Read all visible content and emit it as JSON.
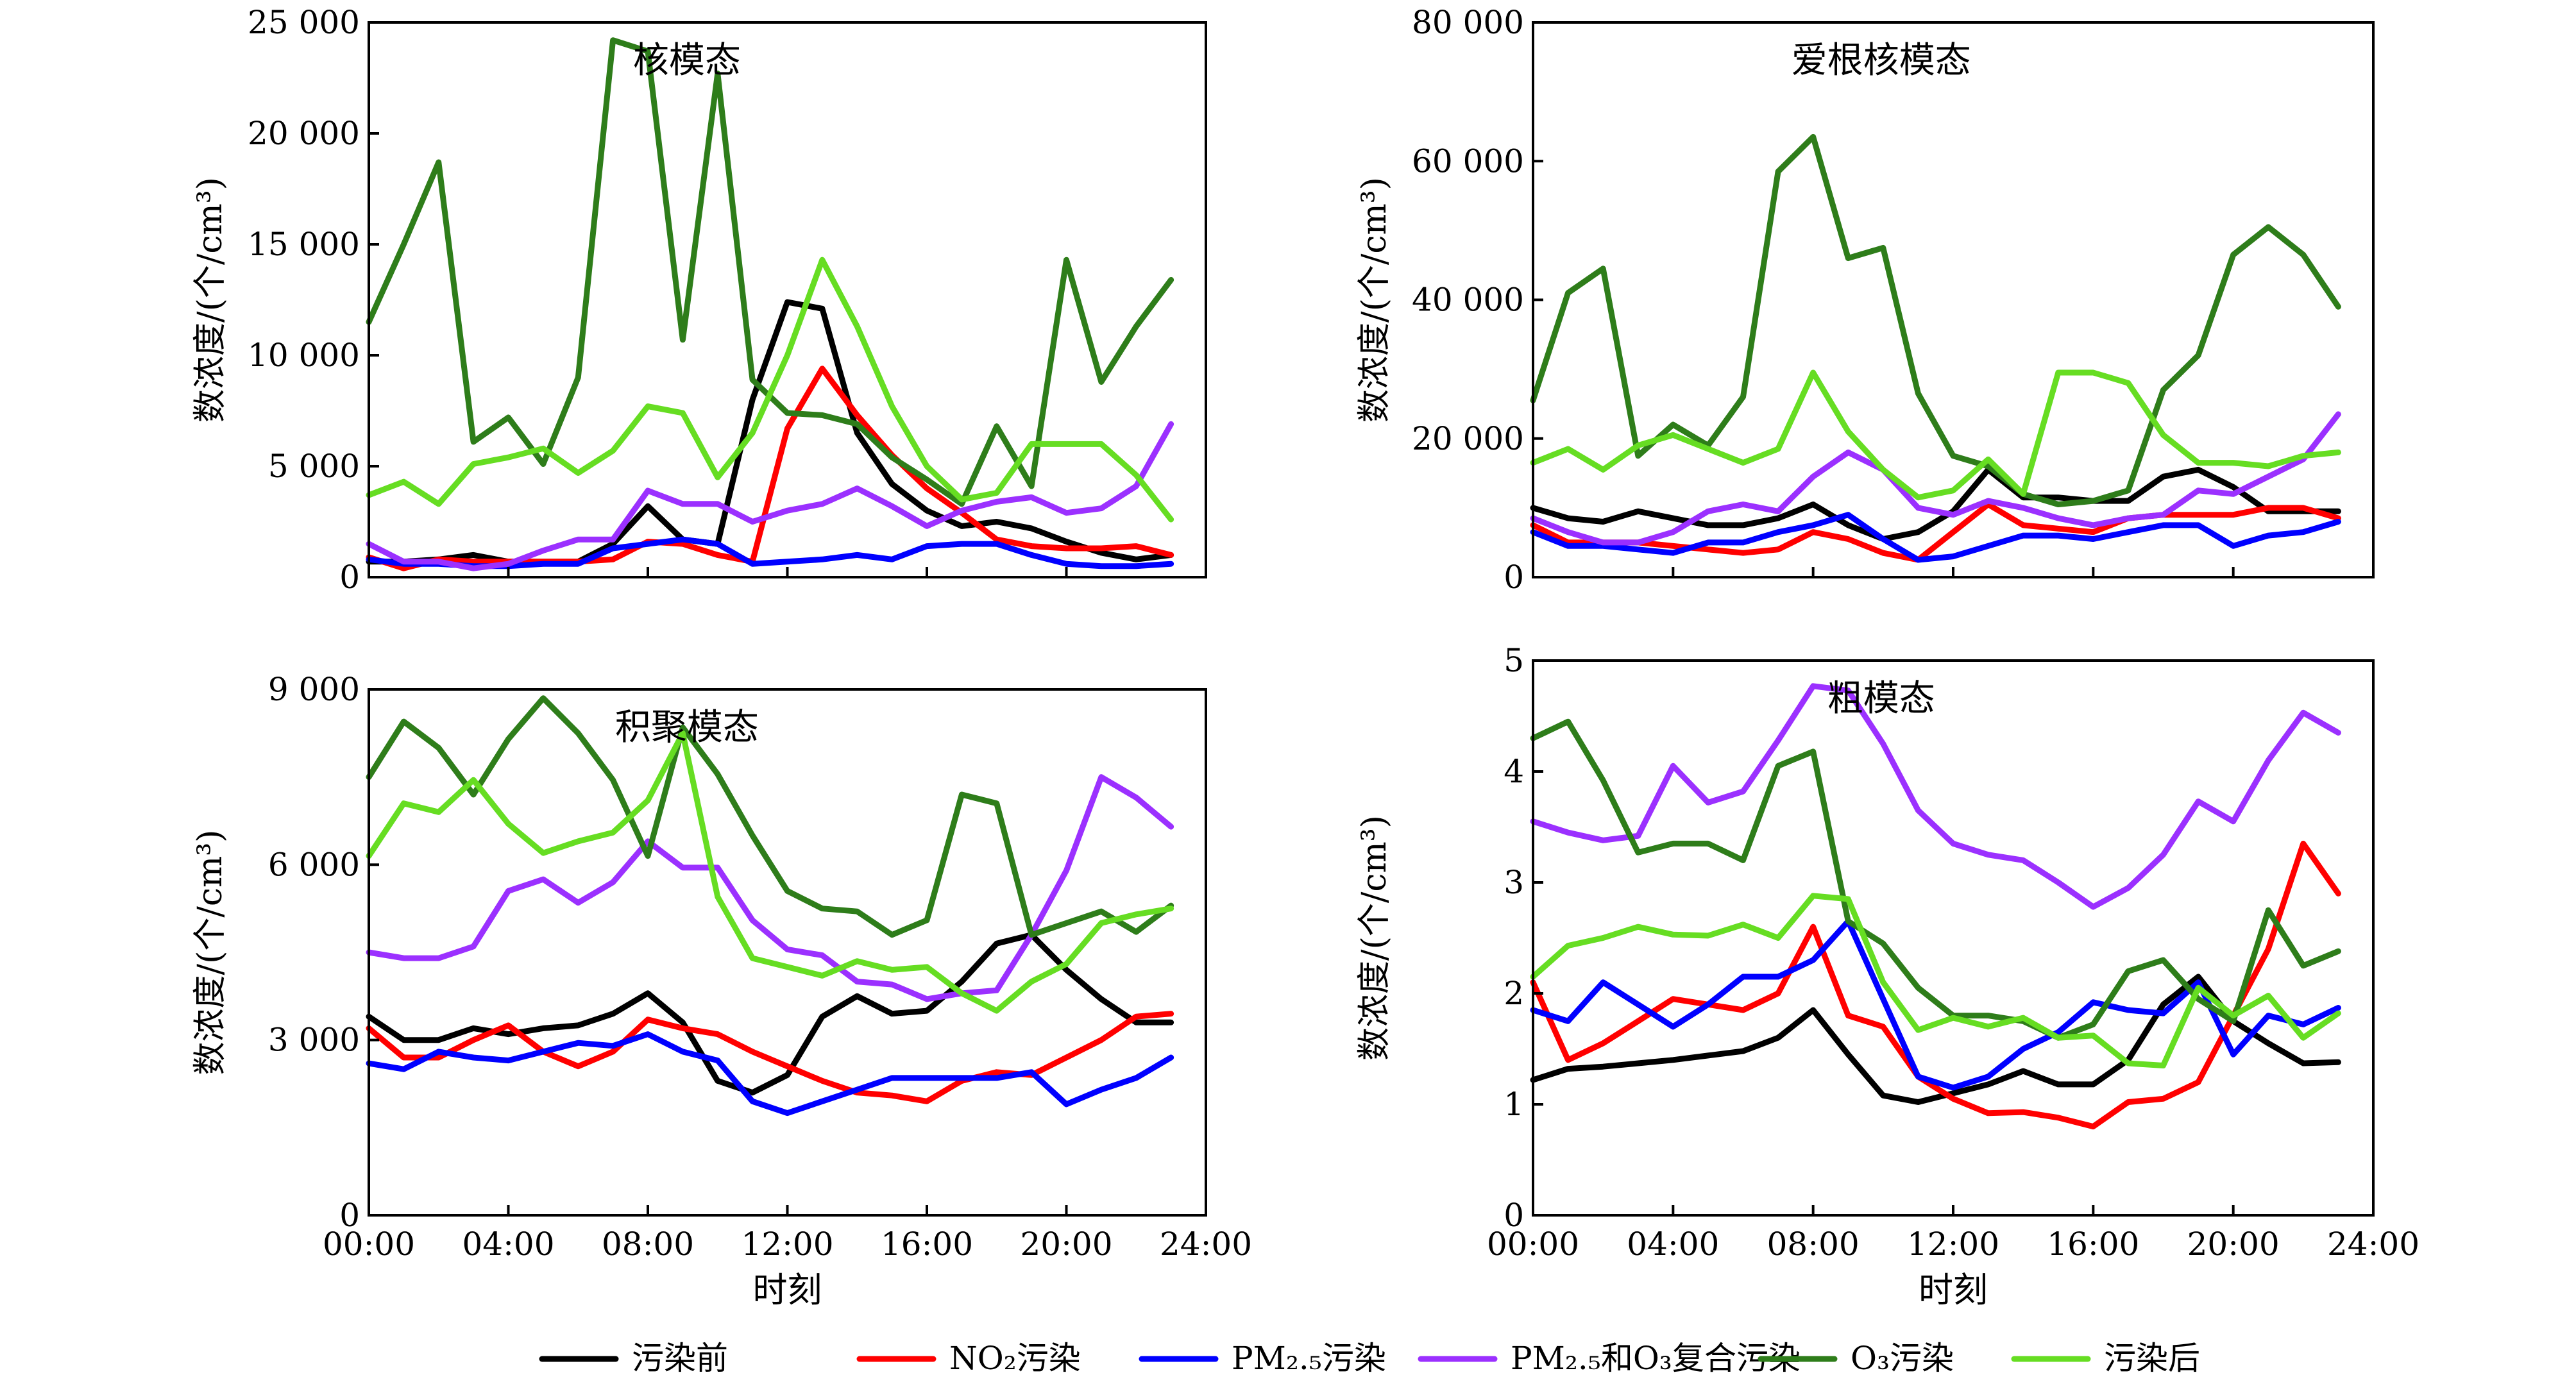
{
  "colors": {
    "污染前": "#000000",
    "NO2污染": "#ff0000",
    "PM2.5污染": "#0000ff",
    "PM2.5和O3复合污染": "#9b30ff",
    "O3污染": "#2e7d1a",
    "污染后": "#66dd22"
  },
  "legend": [
    {
      "key": "污染前",
      "label": "污染前"
    },
    {
      "key": "NO2污染",
      "label": "NO₂污染"
    },
    {
      "key": "PM2.5污染",
      "label": "PM₂.₅污染"
    },
    {
      "key": "PM2.5和O3复合污染",
      "label": "PM₂.₅和O₃复合污染"
    },
    {
      "key": "O3污染",
      "label": "O₃污染"
    },
    {
      "key": "污染后",
      "label": "污染后"
    }
  ],
  "chart_data": [
    {
      "type": "line",
      "title": "核模态",
      "ylabel": "数浓度/(个/cm³)",
      "xlabel": "",
      "x": [
        0,
        1,
        2,
        3,
        4,
        5,
        6,
        7,
        8,
        9,
        10,
        11,
        12,
        13,
        14,
        15,
        16,
        17,
        18,
        19,
        20,
        21,
        22,
        23
      ],
      "xticks": [
        "00:00",
        "04:00",
        "08:00",
        "12:00",
        "16:00",
        "20:00",
        "24:00"
      ],
      "xlim": [
        0,
        24
      ],
      "ylim": [
        0,
        25000
      ],
      "yticks": [
        0,
        5000,
        10000,
        15000,
        20000,
        25000
      ],
      "ytick_labels": [
        "0",
        "5 000",
        "10 000",
        "15 000",
        "20 000",
        "25 000"
      ],
      "series": [
        {
          "key": "污染前",
          "values": [
            700,
            700,
            800,
            1000,
            700,
            700,
            700,
            1500,
            3200,
            1700,
            1500,
            8000,
            12400,
            12100,
            6500,
            4200,
            3000,
            2300,
            2500,
            2200,
            1600,
            1100,
            800,
            1000
          ]
        },
        {
          "key": "NO2污染",
          "values": [
            900,
            400,
            800,
            700,
            700,
            700,
            700,
            800,
            1600,
            1500,
            1000,
            700,
            6700,
            9400,
            7300,
            5500,
            4000,
            2900,
            1700,
            1400,
            1300,
            1300,
            1400,
            1000
          ]
        },
        {
          "key": "PM2.5污染",
          "values": [
            800,
            600,
            600,
            500,
            500,
            600,
            600,
            1300,
            1500,
            1700,
            1500,
            600,
            700,
            800,
            1000,
            800,
            1400,
            1500,
            1500,
            1000,
            600,
            500,
            500,
            600
          ]
        },
        {
          "key": "PM2.5和O3复合污染",
          "values": [
            1500,
            700,
            700,
            400,
            600,
            1200,
            1700,
            1700,
            3900,
            3300,
            3300,
            2500,
            3000,
            3300,
            4000,
            3200,
            2300,
            3000,
            3400,
            3600,
            2900,
            3100,
            4100,
            6900
          ]
        },
        {
          "key": "O3污染",
          "values": [
            11500,
            15000,
            18700,
            6100,
            7200,
            5100,
            9000,
            24200,
            23700,
            10700,
            22700,
            8900,
            7400,
            7300,
            6900,
            5400,
            4400,
            3300,
            6800,
            4100,
            14300,
            8800,
            11300,
            13400
          ]
        },
        {
          "key": "污染后",
          "values": [
            3700,
            4300,
            3300,
            5100,
            5400,
            5800,
            4700,
            5700,
            7700,
            7400,
            4500,
            6500,
            10000,
            14300,
            11300,
            7700,
            5000,
            3500,
            3800,
            6000,
            6000,
            6000,
            4600,
            2600
          ]
        }
      ]
    },
    {
      "type": "line",
      "title": "爱根核模态",
      "ylabel": "数浓度/(个/cm³)",
      "xlabel": "",
      "x": [
        0,
        1,
        2,
        3,
        4,
        5,
        6,
        7,
        8,
        9,
        10,
        11,
        12,
        13,
        14,
        15,
        16,
        17,
        18,
        19,
        20,
        21,
        22,
        23
      ],
      "xticks": [
        "00:00",
        "04:00",
        "08:00",
        "12:00",
        "16:00",
        "20:00",
        "24:00"
      ],
      "xlim": [
        0,
        24
      ],
      "ylim": [
        0,
        80000
      ],
      "yticks": [
        0,
        20000,
        40000,
        60000,
        80000
      ],
      "ytick_labels": [
        "0",
        "20 000",
        "40 000",
        "60 000",
        "80 000"
      ],
      "series": [
        {
          "key": "污染前",
          "values": [
            10000,
            8500,
            8000,
            9500,
            8500,
            7500,
            7500,
            8500,
            10500,
            7500,
            5500,
            6500,
            9500,
            15500,
            11500,
            11500,
            11000,
            11000,
            14500,
            15500,
            13000,
            9500,
            9500,
            9500
          ]
        },
        {
          "key": "NO2污染",
          "values": [
            7500,
            5000,
            5000,
            5000,
            4500,
            4000,
            3500,
            4000,
            6500,
            5500,
            3500,
            2500,
            6500,
            10500,
            7500,
            7000,
            6500,
            8500,
            9000,
            9000,
            9000,
            10000,
            10000,
            8500
          ]
        },
        {
          "key": "PM2.5污染",
          "values": [
            6500,
            4500,
            4500,
            4000,
            3500,
            5000,
            5000,
            6500,
            7500,
            9000,
            5500,
            2500,
            3000,
            4500,
            6000,
            6000,
            5500,
            6500,
            7500,
            7500,
            4500,
            6000,
            6500,
            8000
          ]
        },
        {
          "key": "PM2.5和O3复合污染",
          "values": [
            8500,
            6500,
            5000,
            5000,
            6500,
            9500,
            10500,
            9500,
            14500,
            18000,
            15500,
            10000,
            9000,
            11000,
            10000,
            8500,
            7500,
            8500,
            9000,
            12500,
            12000,
            14500,
            17000,
            23500
          ]
        },
        {
          "key": "O3污染",
          "values": [
            25500,
            41000,
            44500,
            17500,
            22000,
            19000,
            26000,
            58500,
            63500,
            46000,
            47500,
            26500,
            17500,
            16000,
            12000,
            10500,
            11000,
            12500,
            27000,
            32000,
            46500,
            50500,
            46500,
            39000
          ]
        },
        {
          "key": "污染后",
          "values": [
            16500,
            18500,
            15500,
            19000,
            20500,
            18500,
            16500,
            18500,
            29500,
            21000,
            15500,
            11500,
            12500,
            17000,
            12000,
            29500,
            29500,
            28000,
            20500,
            16500,
            16500,
            16000,
            17500,
            18000
          ]
        }
      ]
    },
    {
      "type": "line",
      "title": "积聚模态",
      "ylabel": "数浓度/(个/cm³)",
      "xlabel": "时刻",
      "x": [
        0,
        1,
        2,
        3,
        4,
        5,
        6,
        7,
        8,
        9,
        10,
        11,
        12,
        13,
        14,
        15,
        16,
        17,
        18,
        19,
        20,
        21,
        22,
        23
      ],
      "xticks": [
        "00:00",
        "04:00",
        "08:00",
        "12:00",
        "16:00",
        "20:00",
        "24:00"
      ],
      "xlim": [
        0,
        24
      ],
      "ylim": [
        0,
        9000
      ],
      "yticks": [
        0,
        3000,
        6000,
        9000
      ],
      "ytick_labels": [
        "0",
        "3 000",
        "6 000",
        "9 000"
      ],
      "series": [
        {
          "key": "污染前",
          "values": [
            3400,
            3000,
            3000,
            3200,
            3100,
            3200,
            3250,
            3450,
            3800,
            3300,
            2300,
            2100,
            2400,
            3400,
            3750,
            3450,
            3500,
            4000,
            4650,
            4800,
            4200,
            3700,
            3300,
            3300
          ]
        },
        {
          "key": "NO2污染",
          "values": [
            3200,
            2700,
            2700,
            3000,
            3250,
            2800,
            2550,
            2800,
            3350,
            3200,
            3100,
            2800,
            2550,
            2300,
            2100,
            2050,
            1950,
            2300,
            2450,
            2400,
            2700,
            3000,
            3400,
            3450
          ]
        },
        {
          "key": "PM2.5污染",
          "values": [
            2600,
            2500,
            2800,
            2700,
            2650,
            2800,
            2950,
            2900,
            3100,
            2800,
            2650,
            1950,
            1750,
            1950,
            2150,
            2350,
            2350,
            2350,
            2350,
            2450,
            1900,
            2150,
            2350,
            2700
          ]
        },
        {
          "key": "PM2.5和O3复合污染",
          "values": [
            4500,
            4400,
            4400,
            4600,
            5550,
            5750,
            5350,
            5700,
            6400,
            5950,
            5950,
            5050,
            4550,
            4450,
            4000,
            3950,
            3700,
            3800,
            3850,
            4800,
            5900,
            7500,
            7150,
            6650
          ]
        },
        {
          "key": "O3污染",
          "values": [
            7500,
            8450,
            8000,
            7200,
            8150,
            8850,
            8250,
            7450,
            6150,
            8350,
            7550,
            6500,
            5550,
            5250,
            5200,
            4800,
            5050,
            7200,
            7050,
            4800,
            5000,
            5200,
            4850,
            5300
          ]
        },
        {
          "key": "污染后",
          "values": [
            6150,
            7050,
            6900,
            7450,
            6700,
            6200,
            6400,
            6550,
            7100,
            8250,
            5450,
            4400,
            4250,
            4100,
            4350,
            4200,
            4250,
            3800,
            3500,
            4000,
            4300,
            5000,
            5150,
            5250
          ]
        }
      ]
    },
    {
      "type": "line",
      "title": "粗模态",
      "ylabel": "数浓度/(个/cm³)",
      "xlabel": "时刻",
      "x": [
        0,
        1,
        2,
        3,
        4,
        5,
        6,
        7,
        8,
        9,
        10,
        11,
        12,
        13,
        14,
        15,
        16,
        17,
        18,
        19,
        20,
        21,
        22,
        23
      ],
      "xticks": [
        "00:00",
        "04:00",
        "08:00",
        "12:00",
        "16:00",
        "20:00",
        "24:00"
      ],
      "xlim": [
        0,
        24
      ],
      "ylim": [
        0,
        5
      ],
      "yticks": [
        0,
        1,
        2,
        3,
        4,
        5
      ],
      "ytick_labels": [
        "0",
        "1",
        "2",
        "3",
        "4",
        "5"
      ],
      "series": [
        {
          "key": "污染前",
          "values": [
            1.22,
            1.32,
            1.34,
            1.37,
            1.4,
            1.44,
            1.48,
            1.6,
            1.85,
            1.45,
            1.08,
            1.02,
            1.1,
            1.18,
            1.3,
            1.18,
            1.18,
            1.4,
            1.9,
            2.15,
            1.75,
            1.55,
            1.37,
            1.38
          ]
        },
        {
          "key": "NO2污染",
          "values": [
            2.1,
            1.4,
            1.55,
            1.75,
            1.95,
            1.9,
            1.85,
            2.0,
            2.6,
            1.8,
            1.7,
            1.25,
            1.05,
            0.92,
            0.93,
            0.88,
            0.8,
            1.02,
            1.05,
            1.2,
            1.8,
            2.4,
            3.35,
            2.9
          ]
        },
        {
          "key": "PM2.5污染",
          "values": [
            1.85,
            1.75,
            2.1,
            1.9,
            1.7,
            1.9,
            2.15,
            2.15,
            2.3,
            2.65,
            1.95,
            1.25,
            1.15,
            1.25,
            1.5,
            1.65,
            1.92,
            1.85,
            1.82,
            2.1,
            1.45,
            1.8,
            1.72,
            1.87
          ]
        },
        {
          "key": "PM2.5和O3复合污染",
          "values": [
            3.55,
            3.45,
            3.38,
            3.42,
            4.05,
            3.72,
            3.82,
            4.28,
            4.77,
            4.73,
            4.25,
            3.65,
            3.35,
            3.25,
            3.2,
            3.0,
            2.78,
            2.95,
            3.25,
            3.73,
            3.55,
            4.1,
            4.53,
            4.35
          ]
        },
        {
          "key": "O3污染",
          "values": [
            4.3,
            4.45,
            3.92,
            3.27,
            3.35,
            3.35,
            3.2,
            4.05,
            4.18,
            2.65,
            2.45,
            2.05,
            1.8,
            1.8,
            1.75,
            1.6,
            1.72,
            2.2,
            2.3,
            1.95,
            1.75,
            2.75,
            2.25,
            2.38
          ]
        },
        {
          "key": "污染后",
          "values": [
            2.15,
            2.43,
            2.5,
            2.6,
            2.53,
            2.52,
            2.62,
            2.5,
            2.88,
            2.85,
            2.1,
            1.67,
            1.78,
            1.7,
            1.78,
            1.6,
            1.62,
            1.37,
            1.35,
            2.05,
            1.8,
            1.98,
            1.6,
            1.82
          ]
        }
      ]
    }
  ]
}
